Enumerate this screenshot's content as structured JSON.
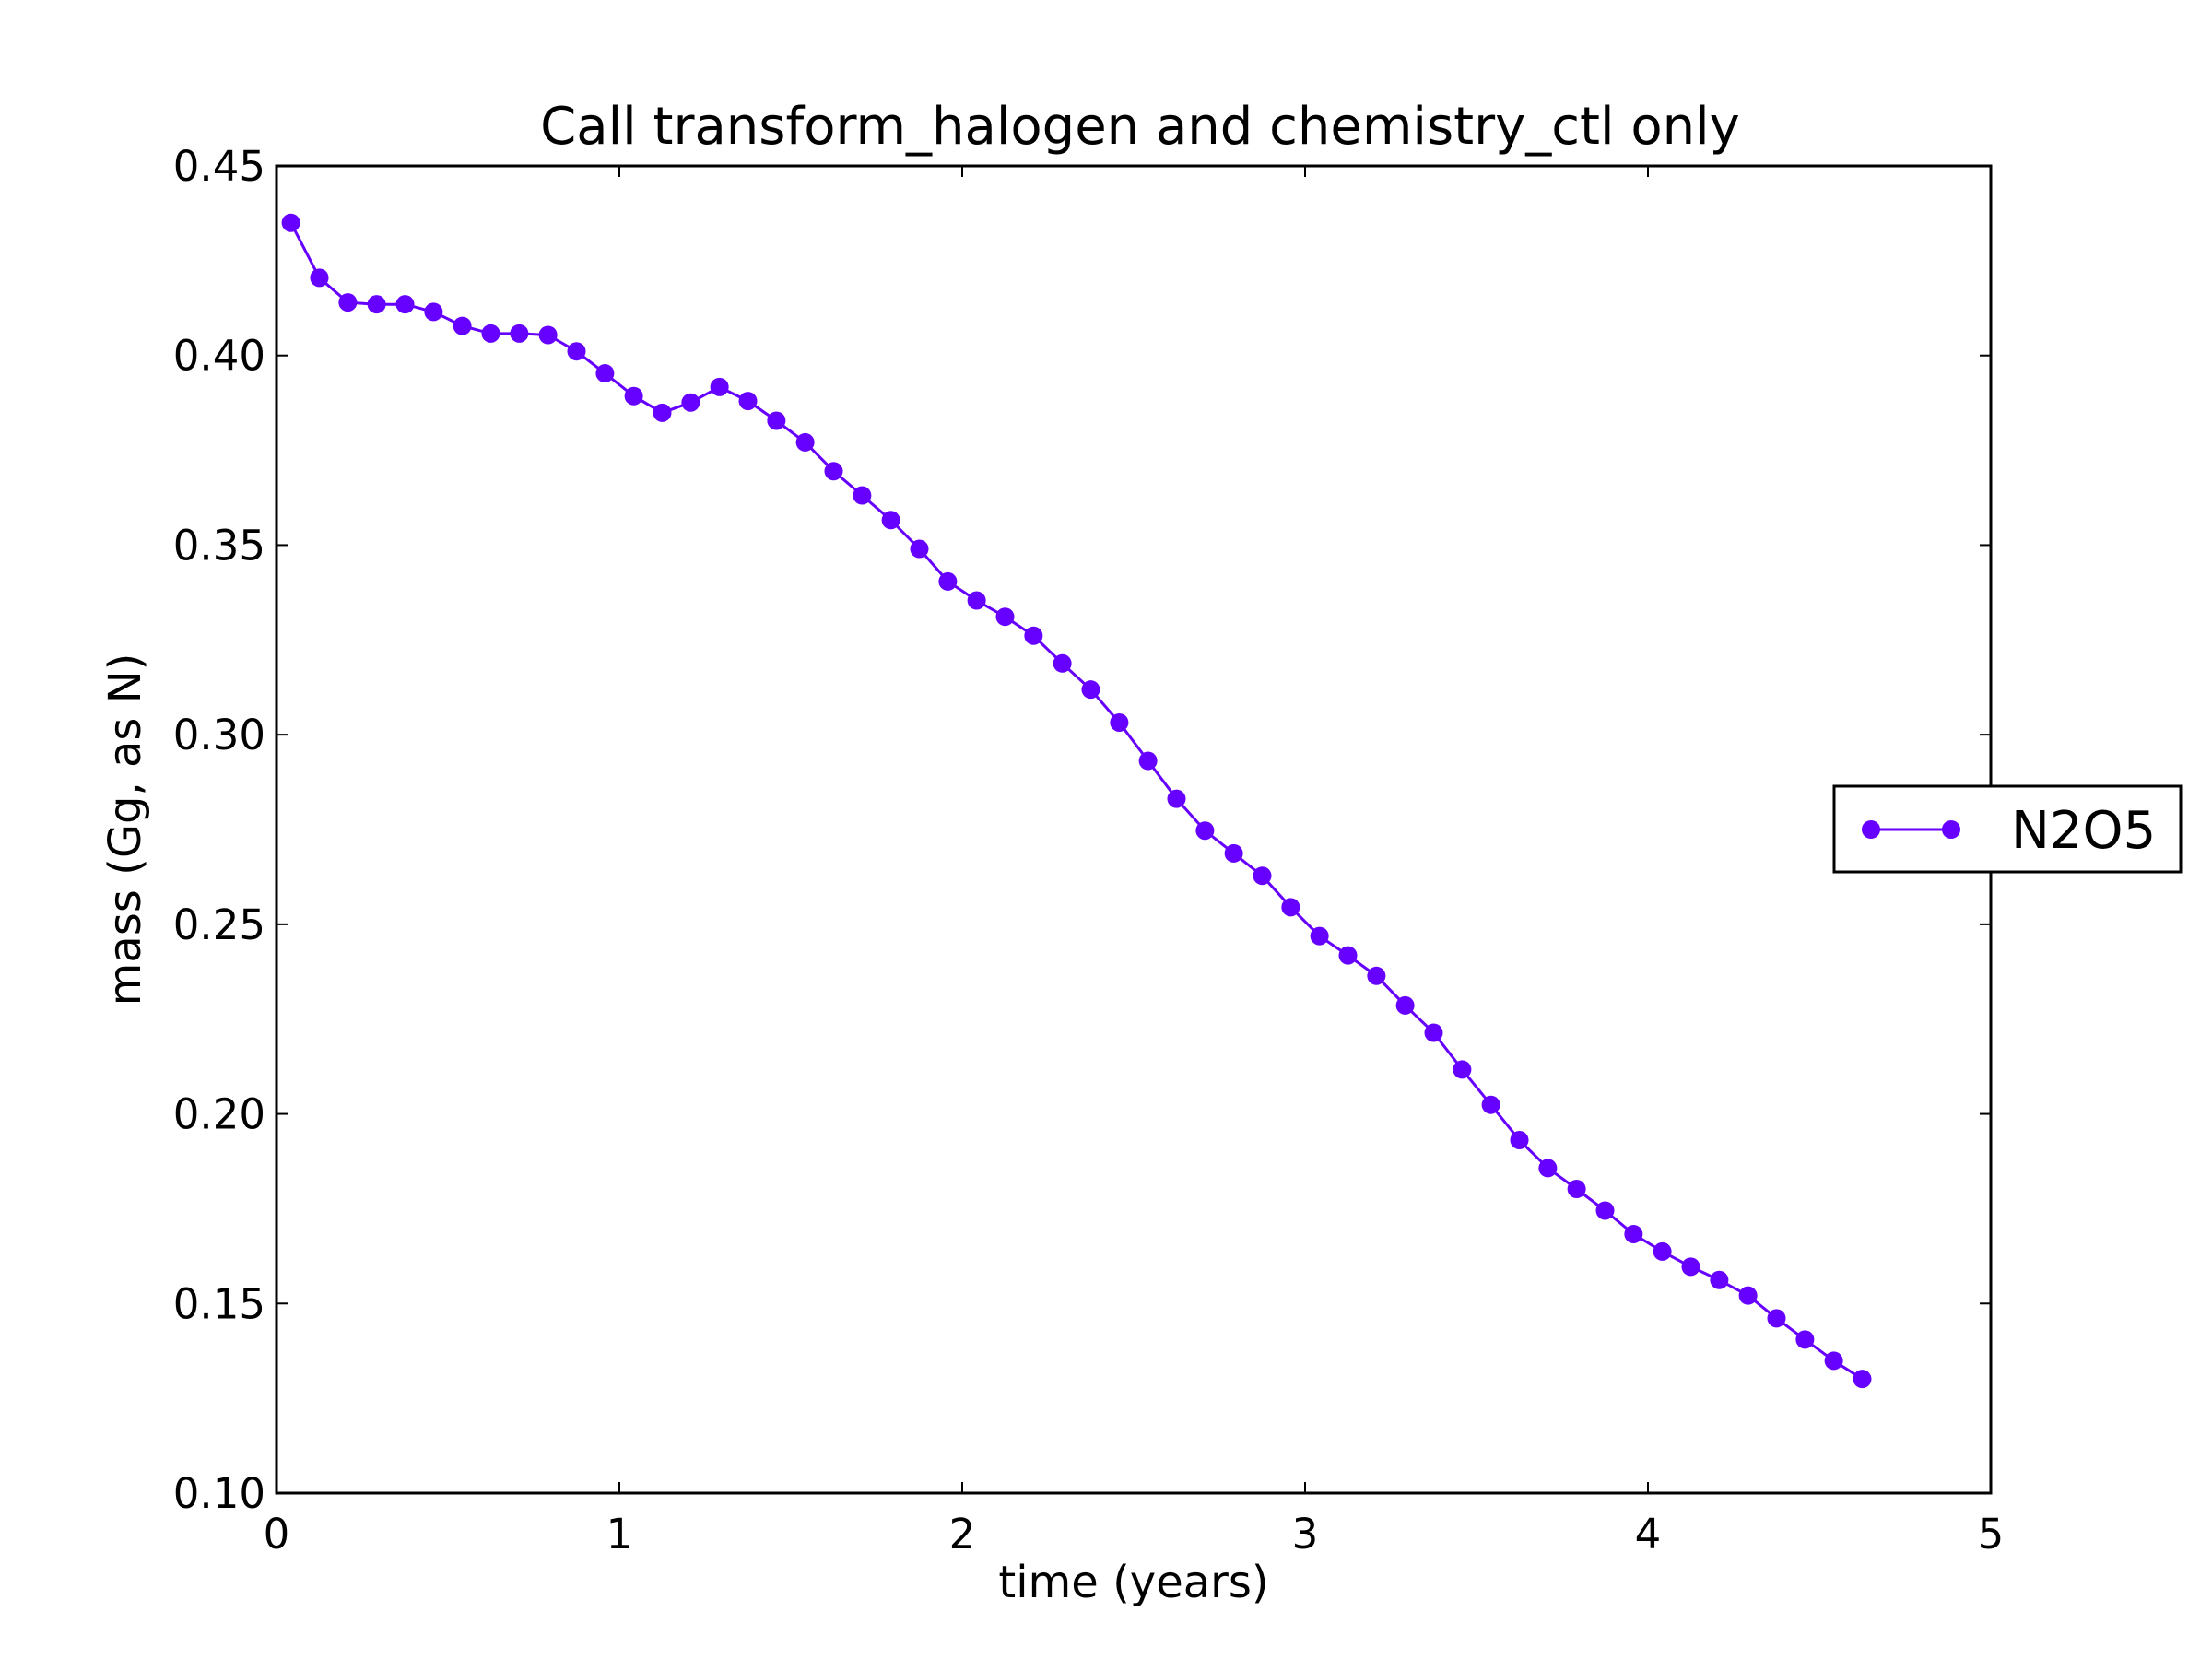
{
  "chart_data": {
    "type": "line",
    "title": "Call transform_halogen and chemistry_ctl only",
    "xlabel": "time (years)",
    "ylabel": "mass (Gg, as N)",
    "xlim": [
      0,
      5
    ],
    "ylim": [
      0.1,
      0.45
    ],
    "x_ticks": [
      "0",
      "1",
      "2",
      "3",
      "4",
      "5"
    ],
    "y_ticks": [
      "0.10",
      "0.15",
      "0.20",
      "0.25",
      "0.30",
      "0.35",
      "0.40",
      "0.45"
    ],
    "grid": false,
    "legend_position": "right, outside plot",
    "series": [
      {
        "name": "N2O5",
        "color": "#6600ff",
        "marker": "circle",
        "x": [
          0.042,
          0.125,
          0.208,
          0.292,
          0.375,
          0.458,
          0.542,
          0.625,
          0.708,
          0.792,
          0.875,
          0.958,
          1.042,
          1.125,
          1.208,
          1.292,
          1.375,
          1.458,
          1.542,
          1.625,
          1.708,
          1.792,
          1.875,
          1.958,
          2.042,
          2.125,
          2.208,
          2.292,
          2.375,
          2.458,
          2.542,
          2.625,
          2.708,
          2.792,
          2.875,
          2.958,
          3.042,
          3.125,
          3.208,
          3.292,
          3.375,
          3.458,
          3.542,
          3.625,
          3.708,
          3.792,
          3.875,
          3.958,
          4.042,
          4.125,
          4.208,
          4.292,
          4.375,
          4.458,
          4.542,
          4.625
        ],
        "values": [
          0.435,
          0.4205,
          0.414,
          0.4135,
          0.4135,
          0.4115,
          0.4078,
          0.4058,
          0.4058,
          0.4054,
          0.4011,
          0.3953,
          0.3893,
          0.3849,
          0.3876,
          0.3917,
          0.388,
          0.3828,
          0.3771,
          0.3695,
          0.3631,
          0.3566,
          0.349,
          0.3404,
          0.3354,
          0.3311,
          0.3261,
          0.3188,
          0.3119,
          0.3032,
          0.2931,
          0.2831,
          0.2747,
          0.2687,
          0.2628,
          0.2545,
          0.2469,
          0.2418,
          0.2364,
          0.2286,
          0.2214,
          0.2117,
          0.2024,
          0.1931,
          0.1857,
          0.1802,
          0.1745,
          0.1683,
          0.1637,
          0.1597,
          0.1562,
          0.1521,
          0.1461,
          0.1405,
          0.1349,
          0.1301
        ]
      }
    ]
  }
}
